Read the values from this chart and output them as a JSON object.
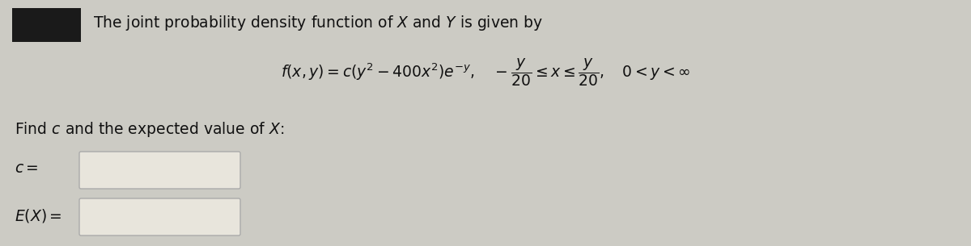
{
  "bg_color": "#cccbc4",
  "box_color": "#1a1a1a",
  "text_color": "#111111",
  "intro_text": "The joint probability density function of $X$ and $Y$ is given by",
  "formula": "$f(x, y) = c(y^2 - 400x^2)e^{-y}, \\quad -\\dfrac{y}{20} \\leq x \\leq \\dfrac{y}{20}, \\quad 0 < y < \\infty$",
  "find_text": "Find $c$ and the expected value of $X$:",
  "c_label": "$c =$",
  "ex_label": "$E(X) =$",
  "input_box_color": "#e8e5dc",
  "input_box_edge": "#aaaaaa"
}
